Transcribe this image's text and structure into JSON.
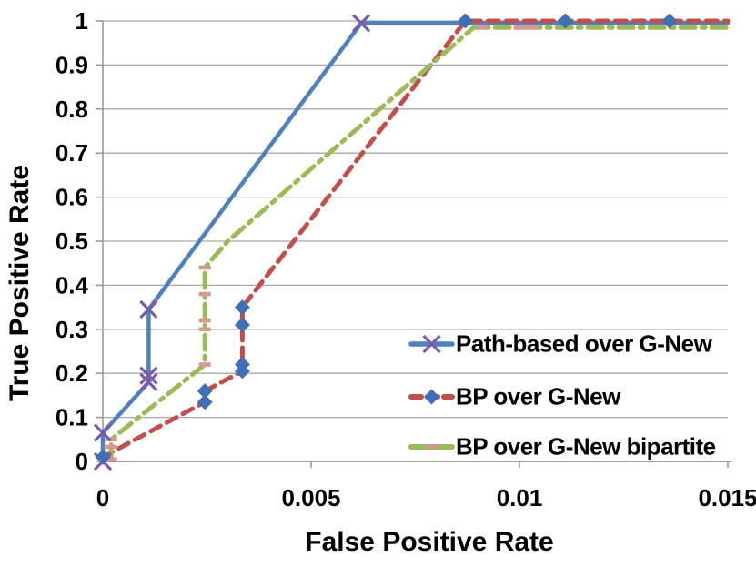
{
  "page": {
    "background": "#FFFFFF"
  },
  "colors": {
    "gridline": "#A8A8A8",
    "axis": "#9B9B9B",
    "text": "#000000"
  },
  "chart_data": {
    "type": "line",
    "title": "",
    "xlabel": "False Positive Rate",
    "ylabel": "True Positive Rate",
    "xlim": [
      0,
      0.015
    ],
    "ylim": [
      0,
      1
    ],
    "x_ticks": [
      0,
      0.005,
      0.01,
      0.015
    ],
    "x_tick_labels": [
      "0",
      "0.005",
      "0.01",
      "0.015"
    ],
    "y_ticks": [
      0,
      0.1,
      0.2,
      0.3,
      0.4,
      0.5,
      0.6,
      0.7,
      0.8,
      0.9,
      1
    ],
    "y_tick_labels": [
      "0",
      "0.1",
      "0.2",
      "0.3",
      "0.4",
      "0.5",
      "0.6",
      "0.7",
      "0.8",
      "0.9",
      "1"
    ],
    "grid": "horizontal",
    "legend_position": "inside-bottom-right",
    "series": [
      {
        "name": "Path-based over G-New",
        "color": "#4F81BD",
        "line_style": "solid",
        "line_width": 4.5,
        "marker": "x",
        "marker_color": "#7A5CA8",
        "points": [
          [
            0,
            0
          ],
          [
            0,
            0.065
          ],
          [
            0.0011,
            0.18
          ],
          [
            0.0011,
            0.195
          ],
          [
            0.0011,
            0.345
          ],
          [
            0.0062,
            0.995
          ],
          [
            0.015,
            0.995
          ]
        ],
        "marker_points": [
          [
            0,
            0
          ],
          [
            0,
            0.065
          ],
          [
            0.0011,
            0.18
          ],
          [
            0.0011,
            0.195
          ],
          [
            0.0011,
            0.345
          ],
          [
            0.0062,
            0.995
          ]
        ]
      },
      {
        "name": "BP over G-New",
        "color": "#C0504D",
        "line_style": "dashed",
        "line_width": 5,
        "marker": "diamond",
        "marker_color": "#3F6FB5",
        "points": [
          [
            0,
            0.01
          ],
          [
            0.00245,
            0.135
          ],
          [
            0.00245,
            0.16
          ],
          [
            0.00335,
            0.205
          ],
          [
            0.00335,
            0.22
          ],
          [
            0.00335,
            0.31
          ],
          [
            0.00335,
            0.35
          ],
          [
            0.0087,
            1.0
          ],
          [
            0.0111,
            1.0
          ],
          [
            0.0136,
            1.0
          ],
          [
            0.015,
            1.0
          ]
        ],
        "marker_points": [
          [
            0,
            0.01
          ],
          [
            0.00245,
            0.135
          ],
          [
            0.00245,
            0.16
          ],
          [
            0.00335,
            0.205
          ],
          [
            0.00335,
            0.22
          ],
          [
            0.00335,
            0.31
          ],
          [
            0.00335,
            0.35
          ],
          [
            0.0087,
            1.0
          ],
          [
            0.0111,
            1.0
          ],
          [
            0.0136,
            1.0
          ]
        ]
      },
      {
        "name": "BP over G-New bipartite",
        "color": "#9BBB59",
        "line_style": "dash-dot",
        "line_width": 5,
        "marker": "dash",
        "marker_color": "#D99694",
        "points": [
          [
            0.0002,
            0.005
          ],
          [
            0.0002,
            0.05
          ],
          [
            0.00245,
            0.22
          ],
          [
            0.00245,
            0.3
          ],
          [
            0.00245,
            0.32
          ],
          [
            0.00245,
            0.38
          ],
          [
            0.00245,
            0.44
          ],
          [
            0.003,
            0.5
          ],
          [
            0.0089,
            0.985
          ],
          [
            0.015,
            0.985
          ]
        ],
        "marker_points": [
          [
            0.0002,
            0.005
          ],
          [
            0.0002,
            0.033
          ],
          [
            0.0002,
            0.05
          ],
          [
            0.00245,
            0.22
          ],
          [
            0.00245,
            0.3
          ],
          [
            0.00245,
            0.32
          ],
          [
            0.00245,
            0.38
          ],
          [
            0.00245,
            0.44
          ],
          [
            0.0091,
            0.985
          ],
          [
            0.01,
            0.985
          ],
          [
            0.0103,
            0.985
          ]
        ]
      }
    ]
  }
}
